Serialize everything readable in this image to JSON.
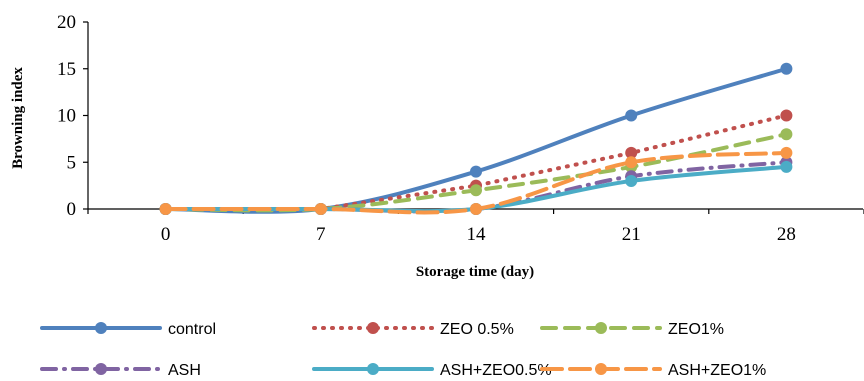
{
  "chart_data": {
    "type": "line",
    "title": "",
    "xlabel": "Storage time (day)",
    "ylabel": "Browning index",
    "categories": [
      "0",
      "7",
      "14",
      "21",
      "28"
    ],
    "ylim": [
      0,
      20
    ],
    "yticks": [
      "0",
      "5",
      "10",
      "15",
      "20"
    ],
    "grid": false,
    "legend_position": "bottom",
    "series": [
      {
        "name": "control",
        "values": [
          0,
          0,
          4,
          10,
          15
        ],
        "color": "#4F81BD",
        "dash": "solid",
        "smooth": true
      },
      {
        "name": "ZEO 0.5%",
        "values": [
          0,
          0,
          2.5,
          6,
          10
        ],
        "color": "#C0504D",
        "dash": "dotted",
        "smooth": false
      },
      {
        "name": "ZEO1%",
        "values": [
          0,
          0,
          2,
          4.5,
          8
        ],
        "color": "#9BBB59",
        "dash": "dashed",
        "smooth": true
      },
      {
        "name": "ASH",
        "values": [
          0,
          0,
          0,
          3.5,
          5
        ],
        "color": "#8064A2",
        "dash": "dashdot",
        "smooth": true
      },
      {
        "name": "ASH+ZEO0.5%",
        "values": [
          0,
          0,
          0,
          3,
          4.5
        ],
        "color": "#4BACC6",
        "dash": "solid",
        "smooth": true
      },
      {
        "name": "ASH+ZEO1%",
        "values": [
          0,
          0,
          0,
          5,
          6
        ],
        "color": "#F79646",
        "dash": "longdash",
        "smooth": true
      }
    ]
  }
}
